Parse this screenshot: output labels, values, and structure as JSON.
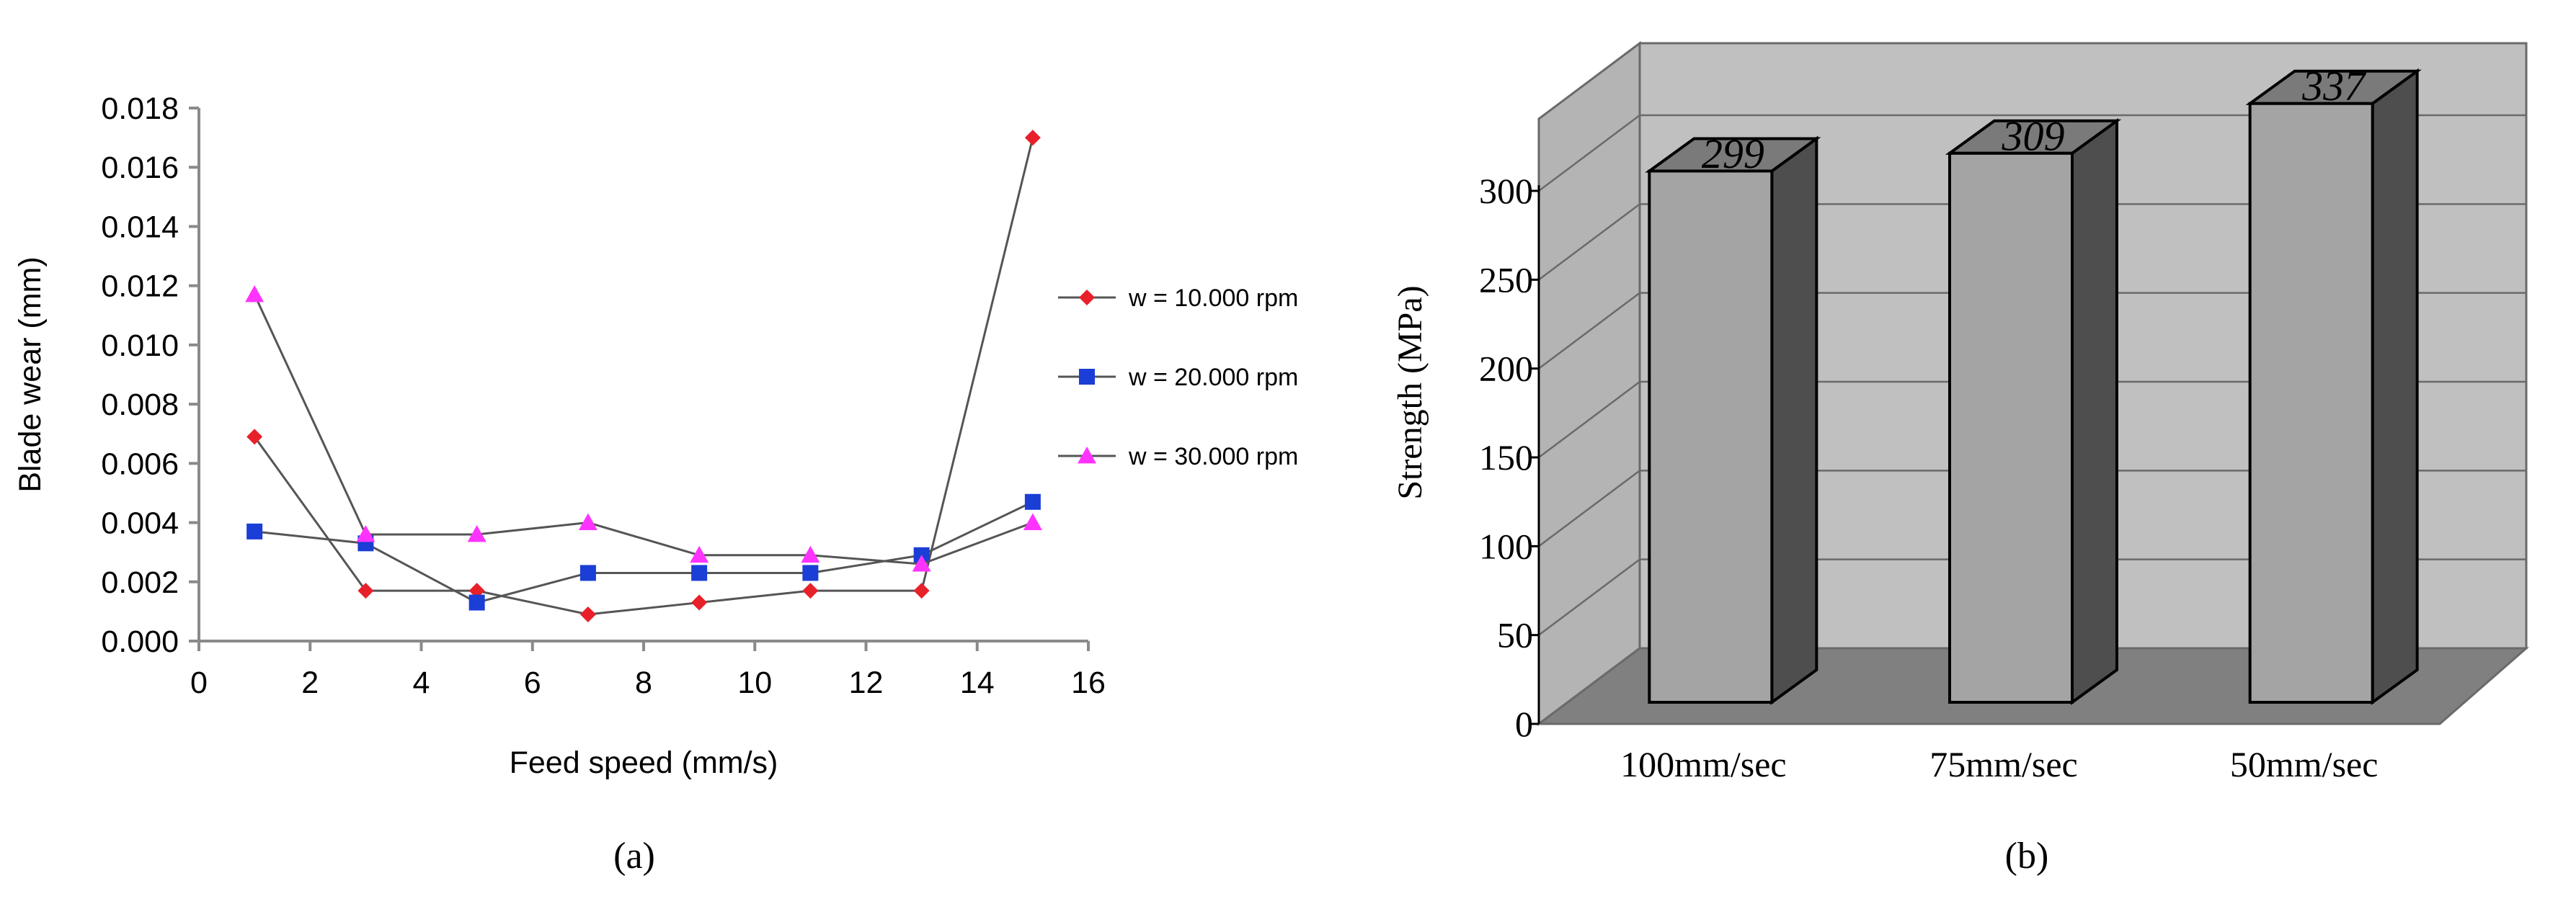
{
  "chart_data": [
    {
      "type": "line",
      "panel_label": "(a)",
      "xlabel": "Feed speed (mm/s)",
      "ylabel": "Blade wear (mm)",
      "xlim": [
        0,
        16
      ],
      "ylim": [
        0,
        0.018
      ],
      "xticks": [
        "0",
        "2",
        "4",
        "6",
        "8",
        "10",
        "12",
        "14",
        "16"
      ],
      "yticks": [
        "0.000",
        "0.002",
        "0.004",
        "0.006",
        "0.008",
        "0.010",
        "0.012",
        "0.014",
        "0.016",
        "0.018"
      ],
      "grid": false,
      "legend_position": "right",
      "x": [
        1,
        3,
        5,
        7,
        9,
        11,
        13,
        15
      ],
      "series": [
        {
          "name": "w = 10.000 rpm",
          "color": "#e8202a",
          "marker": "diamond",
          "values": [
            0.0069,
            0.0017,
            0.0017,
            0.0009,
            0.0013,
            0.0017,
            0.0017,
            0.017
          ]
        },
        {
          "name": "w = 20.000 rpm",
          "color": "#1a3ed6",
          "marker": "square",
          "values": [
            0.0037,
            0.0033,
            0.0013,
            0.0023,
            0.0023,
            0.0023,
            0.0029,
            0.0047
          ]
        },
        {
          "name": "w = 30.000 rpm",
          "color": "#ff33ff",
          "marker": "triangle",
          "values": [
            0.0117,
            0.0036,
            0.0036,
            0.004,
            0.0029,
            0.0029,
            0.0026,
            0.004
          ]
        }
      ],
      "line_color": "#555555"
    },
    {
      "type": "bar",
      "style": "3d",
      "panel_label": "(b)",
      "ylabel": "Strength (MPa)",
      "ylim": [
        0,
        300
      ],
      "yticks": [
        "0",
        "50",
        "100",
        "150",
        "200",
        "250",
        "300"
      ],
      "grid": true,
      "categories": [
        "100mm/sec",
        "75mm/sec",
        "50mm/sec"
      ],
      "values": [
        299,
        309,
        337
      ],
      "data_labels": [
        "299",
        "309",
        "337"
      ],
      "colors": {
        "bar_front": "#a4a4a4",
        "bar_side": "#4e4e4e",
        "bar_top": "#7a7a7a",
        "back_wall": "#c0c0c0",
        "side_wall": "#b4b4b4",
        "floor": "#808080"
      }
    }
  ]
}
